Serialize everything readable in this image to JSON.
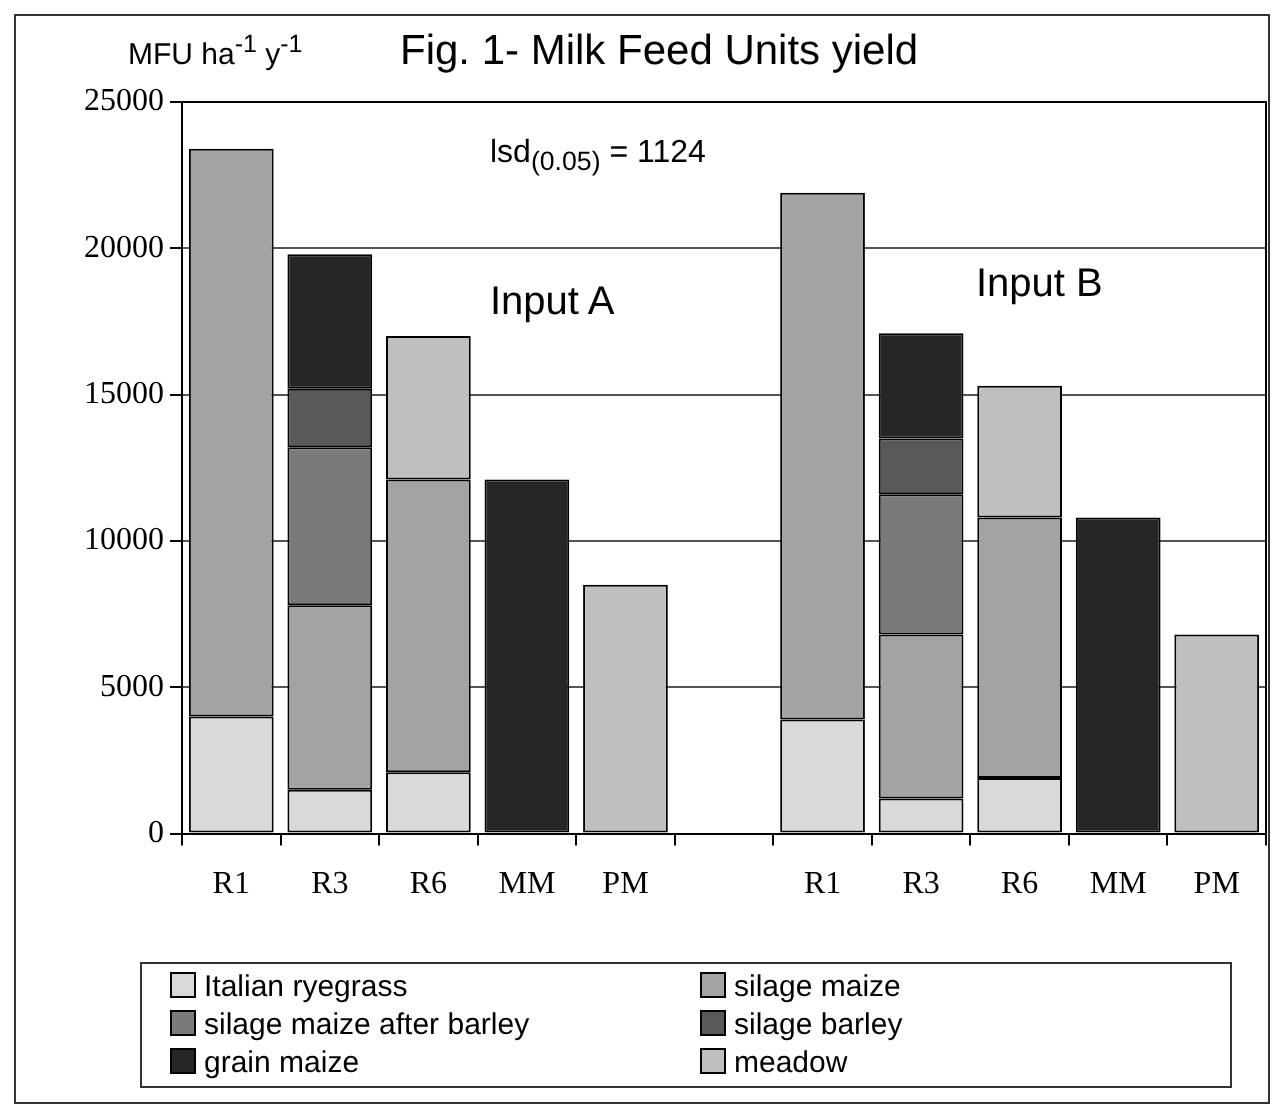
{
  "chart_data": {
    "type": "bar",
    "title": "Fig. 1- Milk Feed Units yield",
    "ylabel": "MFU ha$^{-1}$ y$^{-1}$",
    "categories": [
      "R1",
      "R3",
      "R6",
      "MM",
      "PM",
      null,
      "R1",
      "R3",
      "R6",
      "MM",
      "PM"
    ],
    "stacked": true,
    "series": [
      {
        "name": "Italian ryegrass",
        "color": "#d9d9d9",
        "values": [
          4000,
          1500,
          2100,
          null,
          null,
          null,
          3900,
          1200,
          1900,
          null,
          null
        ]
      },
      {
        "name": "silage maize",
        "color": "#a3a3a3",
        "values": [
          19400,
          6300,
          10000,
          null,
          null,
          null,
          18000,
          5600,
          8900,
          null,
          null
        ]
      },
      {
        "name": "silage maize after barley",
        "color": "#7a7a7a",
        "values": [
          null,
          5400,
          null,
          null,
          null,
          null,
          null,
          4800,
          null,
          null,
          null
        ]
      },
      {
        "name": "silage barley",
        "color": "#595959",
        "values": [
          null,
          2000,
          null,
          null,
          null,
          null,
          null,
          1900,
          null,
          null,
          null
        ]
      },
      {
        "name": "grain maize",
        "color": "#262626",
        "values": [
          null,
          4600,
          null,
          12100,
          null,
          null,
          null,
          3600,
          null,
          10800,
          null
        ]
      },
      {
        "name": "meadow",
        "color": "#bfbfbf",
        "values": [
          null,
          null,
          4900,
          null,
          8500,
          null,
          null,
          null,
          4500,
          null,
          6800
        ]
      }
    ],
    "ylim": [
      0,
      25000
    ],
    "yticks": [
      0,
      5000,
      10000,
      15000,
      20000,
      25000
    ],
    "grid": "y",
    "legend": "bottom",
    "annotations": [
      "lsd$_{(0.05)}$ = 1124",
      "Input A",
      "Input B"
    ]
  }
}
